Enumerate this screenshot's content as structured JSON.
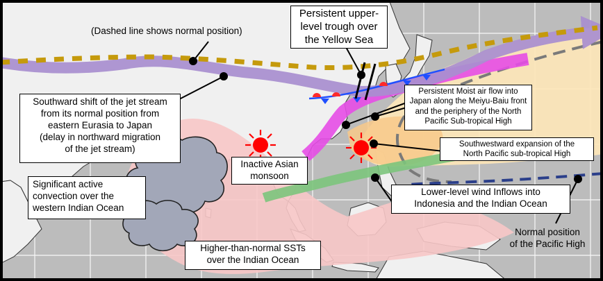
{
  "labels": {
    "dashed_note": "(Dashed line shows normal position)",
    "upper_trough": "Persistent upper-\nlevel trough over\nthe Yellow Sea",
    "jet_shift": "Southward  shift of the jet stream\nfrom its normal position from\neastern Eurasia to Japan\n(delay in northward  migration\nof the jet stream)",
    "moist_air": "Persistent Moist air flow into\nJapan along the Meiyu-Baiu front\nand the periphery of the North\nPacific Sub-tropical High",
    "sw_expansion": "Southwestward  expansion of the\nNorth Pacific sub-tropical  High",
    "asian_monsoon": "Inactive Asian\nmonsoon",
    "indian_convection": "Significant active\nconvection  over the\nwestern Indian Ocean",
    "lower_wind": "Lower-level wind Inflows into\nIndonesia and the Indian Ocean",
    "pacific_high": "Normal position\nof the Pacific High",
    "indian_sst": "Higher-than-normal  SSTs\nover the Indian Ocean"
  },
  "colors": {
    "ocean": "#bcbcbc",
    "land": "#f0f0f0",
    "jet": "#a98fd0",
    "jet_normal": "#c59a0c",
    "moist_flow": "#e64de6",
    "sub_high": "#fde6b8",
    "pacific_normal": "#2b3f8a",
    "high_shift": "#7a7a7a",
    "warm_sst": "#f7c6c6",
    "lower_wind": "#7cc47c",
    "convection": "#a2a7b8",
    "sun": "#ff0000",
    "front_cold": "#1f4fff",
    "front_warm": "#ff2a2a"
  }
}
